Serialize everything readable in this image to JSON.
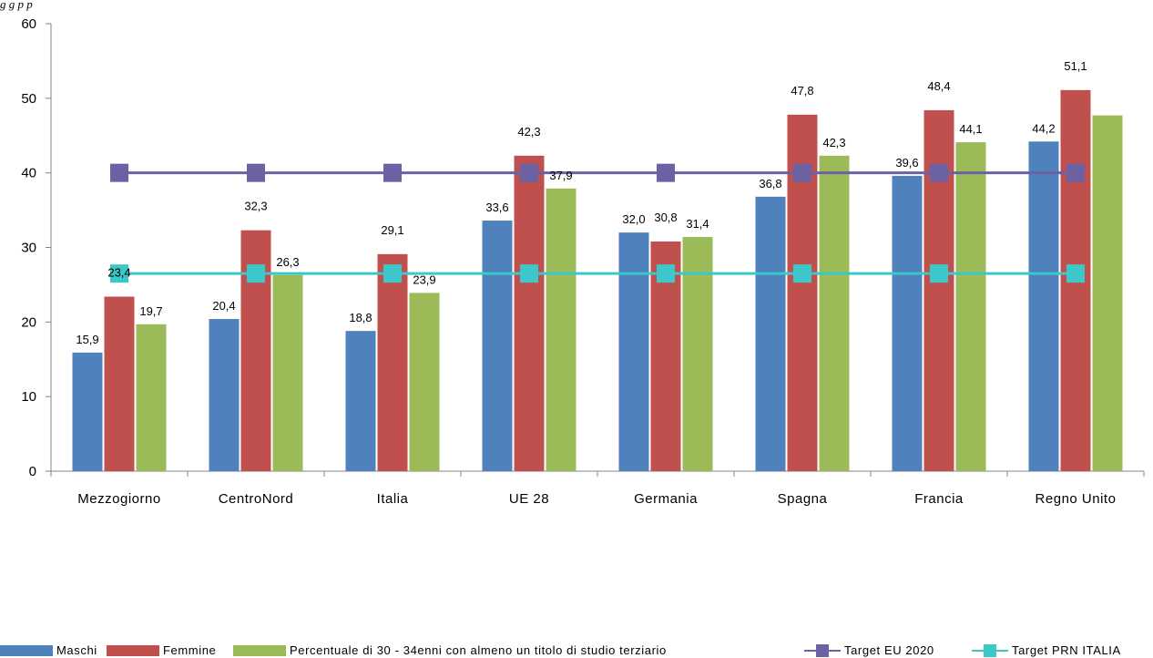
{
  "caption": "g                                                                                                          g                               p                                            p",
  "colors": {
    "maschi": "#4f81bd",
    "femmine": "#c0504d",
    "percentuale": "#9bbb59",
    "target_eu": "#6a62a3",
    "target_prn": "#3cc8c8",
    "axis": "#868686"
  },
  "chart_data": {
    "type": "bar",
    "categories": [
      "Mezzogiorno",
      "CentroNord",
      "Italia",
      "UE 28",
      "Germania",
      "Spagna",
      "Francia",
      "Regno Unito"
    ],
    "series": [
      {
        "name": "Maschi",
        "type": "bar",
        "values": [
          15.9,
          20.4,
          18.8,
          33.6,
          32.0,
          36.8,
          39.6,
          44.2
        ],
        "labels": [
          "15,9",
          "20,4",
          "18,8",
          "33,6",
          "32,0",
          "36,8",
          "39,6",
          "44,2"
        ]
      },
      {
        "name": "Femmine",
        "type": "bar",
        "values": [
          23.4,
          32.3,
          29.1,
          42.3,
          30.8,
          47.8,
          48.4,
          51.1
        ],
        "labels": [
          "23,4",
          "32,3",
          "29,1",
          "42,3",
          "30,8",
          "47,8",
          "48,4",
          "51,1"
        ]
      },
      {
        "name": "Percentuale di 30 - 34enni con almeno un titolo di studio terziario",
        "type": "bar",
        "values": [
          19.7,
          26.3,
          23.9,
          37.9,
          31.4,
          42.3,
          44.1,
          47.7
        ],
        "labels": [
          "19,7",
          "26,3",
          "23,9",
          "37,9",
          "31,4",
          "42,3",
          "44,1",
          ""
        ]
      },
      {
        "name": "Target EU 2020",
        "type": "line",
        "values": [
          40,
          40,
          40,
          40,
          40,
          40,
          40,
          40
        ]
      },
      {
        "name": "Target PRN ITALIA",
        "type": "line",
        "values": [
          26.5,
          26.5,
          26.5,
          26.5,
          26.5,
          26.5,
          26.5,
          26.5
        ]
      }
    ],
    "ylim": [
      0,
      60
    ],
    "yticks": [
      0,
      10,
      20,
      30,
      40,
      50,
      60
    ],
    "xlabel": "",
    "ylabel": "",
    "grid": true,
    "legend": "bottom"
  }
}
